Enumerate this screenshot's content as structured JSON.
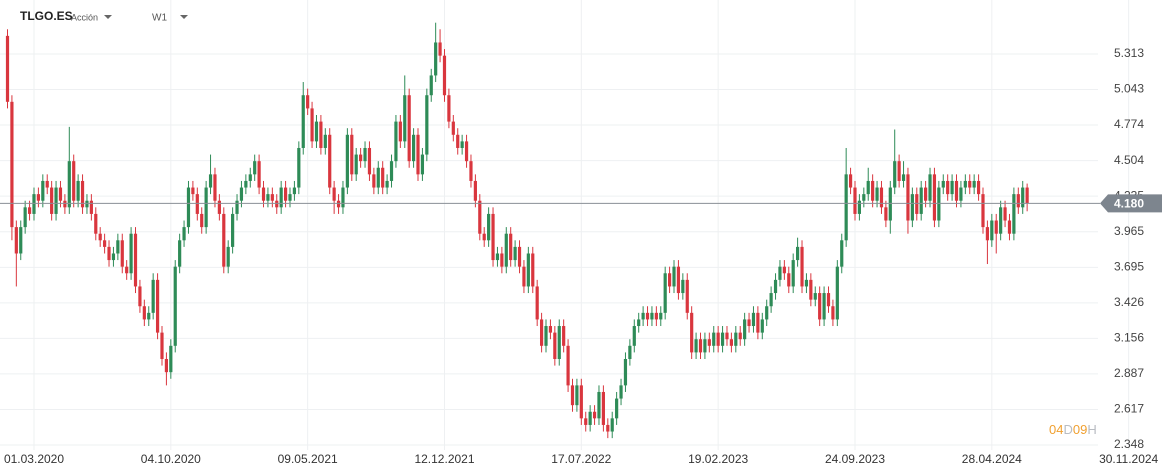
{
  "header": {
    "symbol": "TLGO.ES",
    "asset_type": "Acción",
    "timeframe": "W1"
  },
  "chart_data": {
    "type": "candlestick",
    "up_color": "#2e8b57",
    "down_color": "#d9363e",
    "grid": true,
    "xlim": [
      -1.7,
      264.5
    ],
    "ylim": [
      2.31,
      5.722
    ],
    "xticks": [
      {
        "value": 6,
        "label": "01.03.2020"
      },
      {
        "value": 37,
        "label": "04.10.2020"
      },
      {
        "value": 68,
        "label": "09.05.2021"
      },
      {
        "value": 99,
        "label": "12.12.2021"
      },
      {
        "value": 130,
        "label": "17.07.2022"
      },
      {
        "value": 161,
        "label": "19.02.2023"
      },
      {
        "value": 192,
        "label": "24.09.2023"
      },
      {
        "value": 223,
        "label": "28.04.2024"
      },
      {
        "value": 254,
        "label": "30.11.2024"
      }
    ],
    "yticks": [
      2.348,
      2.617,
      2.887,
      3.156,
      3.426,
      3.695,
      3.965,
      4.235,
      4.504,
      4.774,
      5.043,
      5.313
    ],
    "last_price": {
      "value": 4.18,
      "label": "4.180"
    },
    "timer": [
      "04",
      "D",
      "09",
      "H"
    ],
    "open": [
      5.45,
      4.95,
      4.0,
      3.8,
      4.0,
      4.15,
      4.1,
      4.25,
      4.2,
      4.35,
      4.3,
      4.1,
      4.3,
      4.2,
      4.15,
      4.5,
      4.2,
      4.35,
      4.15,
      4.2,
      4.1,
      3.95,
      3.9,
      3.85,
      3.75,
      3.8,
      3.9,
      3.7,
      3.65,
      3.95,
      3.55,
      3.4,
      3.3,
      3.35,
      3.6,
      3.2,
      3.0,
      2.9,
      3.1,
      3.7,
      3.9,
      4.0,
      4.3,
      4.25,
      4.1,
      4.0,
      4.3,
      4.4,
      4.2,
      4.1,
      3.7,
      3.85,
      4.1,
      4.2,
      4.3,
      4.35,
      4.4,
      4.5,
      4.3,
      4.2,
      4.25,
      4.2,
      4.15,
      4.3,
      4.2,
      4.25,
      4.3,
      4.6,
      5.0,
      4.9,
      4.65,
      4.8,
      4.6,
      4.7,
      4.3,
      4.2,
      4.15,
      4.3,
      4.7,
      4.4,
      4.55,
      4.5,
      4.6,
      4.4,
      4.3,
      4.45,
      4.3,
      4.35,
      4.5,
      4.8,
      4.65,
      5.0,
      4.5,
      4.7,
      4.4,
      4.55,
      5.0,
      5.15,
      5.4,
      5.3,
      5.0,
      4.8,
      4.7,
      4.6,
      4.65,
      4.5,
      4.35,
      4.2,
      3.95,
      3.9,
      4.1,
      3.75,
      3.8,
      3.7,
      3.95,
      3.75,
      3.85,
      3.7,
      3.55,
      3.8,
      3.55,
      3.3,
      3.1,
      3.25,
      3.2,
      3.0,
      3.25,
      3.1,
      2.8,
      2.65,
      2.8,
      2.55,
      2.5,
      2.6,
      2.55,
      2.75,
      2.5,
      2.45,
      2.55,
      2.7,
      2.8,
      3.0,
      3.1,
      3.25,
      3.3,
      3.35,
      3.3,
      3.35,
      3.3,
      3.35,
      3.65,
      3.55,
      3.7,
      3.5,
      3.6,
      3.35,
      3.05,
      3.15,
      3.05,
      3.15,
      3.1,
      3.2,
      3.1,
      3.2,
      3.15,
      3.1,
      3.2,
      3.15,
      3.3,
      3.25,
      3.35,
      3.2,
      3.3,
      3.4,
      3.5,
      3.6,
      3.7,
      3.65,
      3.55,
      3.75,
      3.85,
      3.55,
      3.6,
      3.45,
      3.5,
      3.3,
      3.5,
      3.4,
      3.3,
      3.7,
      3.9,
      4.4,
      4.3,
      4.1,
      4.2,
      4.25,
      4.35,
      4.2,
      4.3,
      4.15,
      4.05,
      4.3,
      4.5,
      4.35,
      4.4,
      4.05,
      4.25,
      4.1,
      4.3,
      4.2,
      4.4,
      4.05,
      4.3,
      4.35,
      4.25,
      4.35,
      4.2,
      4.3,
      4.35,
      4.3,
      4.35,
      4.25,
      4.0,
      3.9,
      4.05,
      3.95,
      4.15,
      4.05,
      3.95,
      4.25,
      4.15,
      4.3
    ],
    "high": [
      5.5,
      5.0,
      4.05,
      4.05,
      4.2,
      4.2,
      4.3,
      4.3,
      4.4,
      4.4,
      4.35,
      4.35,
      4.35,
      4.25,
      4.76,
      4.55,
      4.4,
      4.4,
      4.25,
      4.25,
      4.15,
      4.0,
      3.95,
      3.9,
      3.85,
      3.95,
      3.95,
      3.75,
      4.0,
      4.0,
      3.6,
      3.45,
      3.4,
      3.65,
      3.65,
      3.25,
      3.05,
      3.15,
      3.75,
      3.95,
      4.05,
      4.35,
      4.35,
      4.3,
      4.15,
      4.35,
      4.55,
      4.45,
      4.25,
      4.15,
      3.9,
      4.15,
      4.25,
      4.35,
      4.4,
      4.45,
      4.55,
      4.55,
      4.35,
      4.3,
      4.3,
      4.25,
      4.35,
      4.35,
      4.3,
      4.35,
      4.65,
      5.1,
      5.05,
      4.95,
      4.85,
      4.85,
      4.75,
      4.75,
      4.35,
      4.25,
      4.35,
      4.75,
      4.75,
      4.6,
      4.6,
      4.65,
      4.65,
      4.45,
      4.5,
      4.5,
      4.4,
      4.55,
      4.85,
      4.85,
      5.15,
      5.05,
      4.75,
      4.75,
      4.6,
      5.05,
      5.2,
      5.55,
      5.5,
      5.35,
      5.05,
      4.85,
      4.75,
      4.7,
      4.7,
      4.55,
      4.4,
      4.25,
      4.0,
      4.15,
      4.15,
      3.85,
      3.85,
      4.0,
      4.0,
      3.9,
      3.9,
      3.75,
      3.85,
      3.85,
      3.6,
      3.35,
      3.3,
      3.3,
      3.25,
      3.3,
      3.3,
      3.15,
      2.85,
      2.85,
      2.85,
      2.6,
      2.65,
      2.65,
      2.8,
      2.8,
      2.55,
      2.6,
      2.75,
      2.85,
      3.05,
      3.15,
      3.3,
      3.35,
      3.4,
      3.4,
      3.4,
      3.4,
      3.4,
      3.7,
      3.7,
      3.75,
      3.75,
      3.65,
      3.65,
      3.4,
      3.2,
      3.2,
      3.2,
      3.2,
      3.25,
      3.25,
      3.25,
      3.25,
      3.2,
      3.25,
      3.25,
      3.35,
      3.35,
      3.4,
      3.4,
      3.35,
      3.45,
      3.55,
      3.65,
      3.75,
      3.75,
      3.7,
      3.8,
      3.92,
      3.9,
      3.65,
      3.65,
      3.55,
      3.55,
      3.55,
      3.55,
      3.45,
      3.75,
      3.95,
      4.6,
      4.45,
      4.35,
      4.25,
      4.3,
      4.45,
      4.4,
      4.35,
      4.35,
      4.2,
      4.35,
      4.74,
      4.55,
      4.5,
      4.45,
      4.3,
      4.3,
      4.35,
      4.35,
      4.45,
      4.45,
      4.35,
      4.4,
      4.4,
      4.4,
      4.4,
      4.35,
      4.4,
      4.4,
      4.4,
      4.4,
      4.3,
      4.05,
      4.1,
      4.1,
      4.2,
      4.2,
      4.1,
      4.3,
      4.3,
      4.35,
      4.33
    ],
    "low": [
      4.9,
      3.9,
      3.55,
      3.75,
      3.95,
      4.05,
      4.05,
      4.15,
      4.15,
      4.25,
      4.05,
      4.05,
      4.15,
      4.1,
      4.1,
      4.15,
      4.15,
      4.1,
      4.1,
      4.05,
      3.9,
      3.85,
      3.8,
      3.7,
      3.7,
      3.75,
      3.65,
      3.6,
      3.6,
      3.5,
      3.35,
      3.25,
      3.25,
      3.3,
      3.15,
      2.95,
      2.8,
      2.85,
      3.05,
      3.65,
      3.85,
      3.95,
      4.2,
      4.05,
      3.95,
      3.95,
      4.25,
      4.15,
      4.05,
      3.65,
      3.65,
      3.8,
      4.05,
      4.15,
      4.25,
      4.3,
      4.35,
      4.25,
      4.15,
      4.15,
      4.15,
      4.1,
      4.1,
      4.15,
      4.15,
      4.2,
      4.25,
      4.55,
      4.85,
      4.6,
      4.6,
      4.55,
      4.55,
      4.25,
      4.1,
      4.1,
      4.1,
      4.25,
      4.35,
      4.35,
      4.45,
      4.45,
      4.35,
      4.25,
      4.25,
      4.25,
      4.25,
      4.3,
      4.45,
      4.6,
      4.6,
      4.45,
      4.45,
      4.35,
      4.35,
      4.5,
      4.95,
      5.1,
      5.25,
      4.95,
      4.75,
      4.65,
      4.55,
      4.55,
      4.45,
      4.3,
      4.15,
      3.9,
      3.85,
      3.85,
      3.7,
      3.7,
      3.65,
      3.65,
      3.7,
      3.7,
      3.65,
      3.5,
      3.5,
      3.5,
      3.25,
      3.05,
      3.05,
      3.15,
      2.95,
      2.95,
      3.05,
      2.75,
      2.6,
      2.6,
      2.5,
      2.45,
      2.45,
      2.5,
      2.5,
      2.45,
      2.4,
      2.4,
      2.5,
      2.65,
      2.75,
      2.95,
      3.05,
      3.2,
      3.25,
      3.25,
      3.25,
      3.25,
      3.25,
      3.3,
      3.5,
      3.5,
      3.45,
      3.45,
      3.3,
      3.0,
      3.0,
      3.0,
      3.0,
      3.05,
      3.05,
      3.05,
      3.05,
      3.1,
      3.05,
      3.05,
      3.1,
      3.1,
      3.2,
      3.2,
      3.15,
      3.15,
      3.25,
      3.35,
      3.45,
      3.55,
      3.6,
      3.5,
      3.5,
      3.7,
      3.5,
      3.5,
      3.4,
      3.4,
      3.25,
      3.25,
      3.35,
      3.25,
      3.25,
      3.65,
      3.85,
      4.25,
      4.05,
      4.05,
      4.15,
      4.2,
      4.15,
      4.15,
      4.1,
      4.0,
      3.95,
      4.25,
      4.3,
      4.3,
      3.95,
      4.0,
      4.05,
      4.05,
      4.15,
      4.15,
      4.0,
      4.0,
      4.25,
      4.2,
      4.2,
      4.15,
      4.15,
      4.25,
      4.25,
      4.25,
      4.2,
      3.95,
      3.72,
      3.85,
      3.8,
      3.9,
      4.0,
      3.9,
      3.9,
      4.1,
      4.1,
      4.12
    ],
    "close": [
      4.95,
      4.0,
      3.8,
      4.0,
      4.15,
      4.1,
      4.25,
      4.2,
      4.35,
      4.3,
      4.1,
      4.3,
      4.2,
      4.15,
      4.5,
      4.2,
      4.35,
      4.15,
      4.2,
      4.1,
      3.95,
      3.9,
      3.85,
      3.75,
      3.8,
      3.9,
      3.7,
      3.65,
      3.95,
      3.55,
      3.4,
      3.3,
      3.35,
      3.6,
      3.2,
      3.0,
      2.9,
      3.1,
      3.7,
      3.9,
      4.0,
      4.3,
      4.25,
      4.1,
      4.0,
      4.3,
      4.4,
      4.2,
      4.1,
      3.7,
      3.85,
      4.1,
      4.2,
      4.3,
      4.35,
      4.4,
      4.5,
      4.3,
      4.2,
      4.25,
      4.2,
      4.15,
      4.3,
      4.2,
      4.25,
      4.3,
      4.6,
      5.0,
      4.9,
      4.65,
      4.8,
      4.6,
      4.7,
      4.3,
      4.2,
      4.15,
      4.3,
      4.7,
      4.4,
      4.55,
      4.5,
      4.6,
      4.4,
      4.3,
      4.45,
      4.3,
      4.35,
      4.5,
      4.8,
      4.65,
      5.0,
      4.5,
      4.7,
      4.4,
      4.55,
      5.0,
      5.15,
      5.4,
      5.3,
      5.0,
      4.8,
      4.7,
      4.6,
      4.65,
      4.5,
      4.35,
      4.2,
      3.95,
      3.9,
      4.1,
      3.75,
      3.8,
      3.7,
      3.95,
      3.75,
      3.85,
      3.7,
      3.55,
      3.8,
      3.55,
      3.3,
      3.1,
      3.25,
      3.2,
      3.0,
      3.25,
      3.1,
      2.8,
      2.65,
      2.8,
      2.55,
      2.5,
      2.6,
      2.55,
      2.75,
      2.5,
      2.45,
      2.55,
      2.7,
      2.8,
      3.0,
      3.1,
      3.25,
      3.3,
      3.35,
      3.3,
      3.35,
      3.3,
      3.35,
      3.65,
      3.55,
      3.7,
      3.5,
      3.6,
      3.35,
      3.05,
      3.15,
      3.05,
      3.15,
      3.1,
      3.2,
      3.1,
      3.2,
      3.15,
      3.1,
      3.2,
      3.15,
      3.3,
      3.25,
      3.35,
      3.2,
      3.3,
      3.4,
      3.5,
      3.6,
      3.7,
      3.65,
      3.55,
      3.75,
      3.85,
      3.55,
      3.6,
      3.45,
      3.5,
      3.3,
      3.5,
      3.4,
      3.3,
      3.7,
      3.9,
      4.4,
      4.3,
      4.1,
      4.2,
      4.25,
      4.35,
      4.2,
      4.3,
      4.15,
      4.05,
      4.3,
      4.5,
      4.35,
      4.4,
      4.05,
      4.25,
      4.1,
      4.3,
      4.2,
      4.4,
      4.05,
      4.3,
      4.35,
      4.25,
      4.35,
      4.2,
      4.3,
      4.35,
      4.3,
      4.35,
      4.25,
      4.0,
      3.9,
      4.05,
      3.95,
      4.15,
      4.05,
      3.95,
      4.25,
      4.15,
      4.3,
      4.18
    ]
  }
}
